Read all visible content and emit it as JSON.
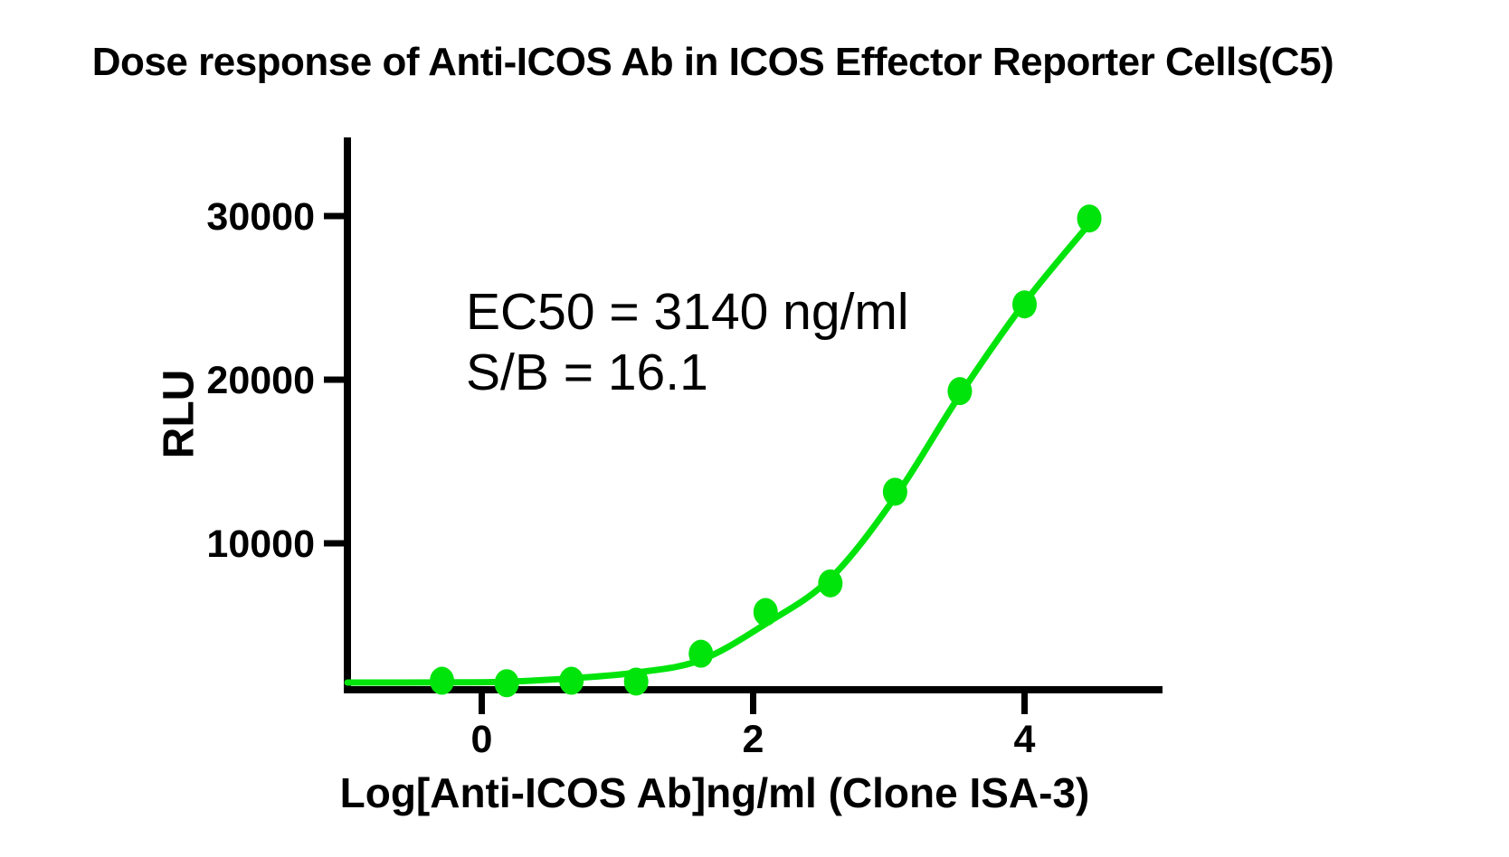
{
  "title": "Dose response of Anti-ICOS Ab in ICOS Effector Reporter Cells(C5)",
  "annotation": {
    "line1": "EC50 = 3140 ng/ml",
    "line2": "S/B = 16.1"
  },
  "colors": {
    "curve": "#00E40C",
    "axis": "#000000",
    "text": "#000000",
    "background": "#FFFFFF"
  },
  "chart_data": {
    "type": "scatter",
    "title": "Dose response of Anti-ICOS Ab in ICOS Effector Reporter Cells(C5)",
    "xlabel": "Log[Anti-ICOS Ab]ng/ml (Clone ISA-3)",
    "ylabel": "RLU",
    "xlim": [
      -1.0,
      5.0
    ],
    "ylim": [
      0,
      35000
    ],
    "xticks": [
      0,
      2,
      4
    ],
    "yticks": [
      10000,
      20000,
      30000
    ],
    "grid": false,
    "legend": "none",
    "ec50_label_value": "3140 ng/ml",
    "ec50_ng_ml": 3140,
    "signal_to_background": 16.1,
    "series": [
      {
        "name": "Anti-ICOS Ab (Clone ISA-3)",
        "x": [
          -0.293,
          0.184,
          0.661,
          1.138,
          1.615,
          2.092,
          2.569,
          3.046,
          3.523,
          4.0,
          4.477
        ],
        "y": [
          1600,
          1450,
          1600,
          1550,
          3250,
          5800,
          7550,
          13150,
          19300,
          24600,
          29850
        ]
      }
    ],
    "fit_curve": {
      "x": [
        -0.99,
        -0.293,
        0.184,
        0.661,
        1.138,
        1.615,
        2.092,
        2.569,
        3.046,
        3.523,
        4.0,
        4.477
      ],
      "y": [
        1490,
        1500,
        1540,
        1750,
        2100,
        2870,
        5080,
        7850,
        12820,
        19060,
        24700,
        29520
      ]
    }
  }
}
